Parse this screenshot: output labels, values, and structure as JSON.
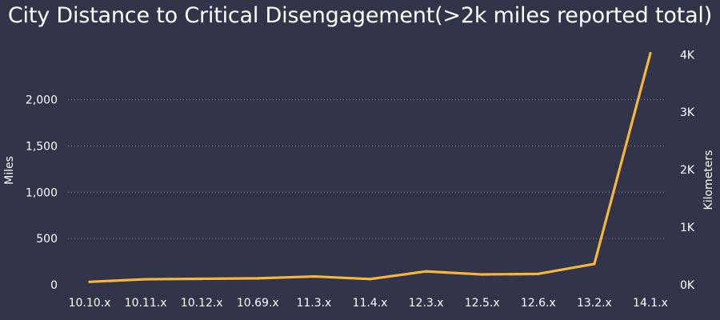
{
  "chart_data": {
    "type": "line",
    "title": "City Distance to Critical Disengagement(>2k miles reported total)",
    "xlabel": "",
    "ylabel": "Miles",
    "y2label": "Kilometers",
    "categories": [
      "10.10.x",
      "10.11.x",
      "10.12.x",
      "10.69.x",
      "11.3.x",
      "11.4.x",
      "12.3.x",
      "12.5.x",
      "12.6.x",
      "13.2.x",
      "14.1.x"
    ],
    "series": [
      {
        "name": "Miles",
        "values": [
          32,
          60,
          65,
          70,
          90,
          62,
          145,
          112,
          118,
          225,
          2500
        ],
        "color": "#f4b63f"
      }
    ],
    "ylim": [
      0,
      2540
    ],
    "yticks": [
      0,
      500,
      1000,
      1500,
      2000
    ],
    "ytick_labels": [
      "0",
      "500",
      "1,000",
      "1,500",
      "2,000"
    ],
    "y2ticks_km": [
      0,
      1000,
      2000,
      3000,
      4000
    ],
    "y2tick_labels": [
      "0K",
      "1K",
      "2K",
      "3K",
      "4K"
    ],
    "grid": true
  }
}
